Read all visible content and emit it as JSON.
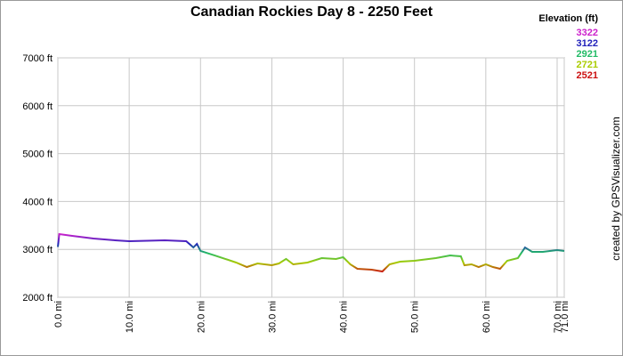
{
  "chart_data": {
    "type": "line",
    "title": "Canadian Rockies Day 8 - 2250 Feet",
    "credit": "created by GPSVisualizer.com",
    "legend": {
      "title": "Elevation (ft)",
      "items": [
        {
          "value": 3322,
          "color": "#cc22cc"
        },
        {
          "value": 3122,
          "color": "#2222bb"
        },
        {
          "value": 2921,
          "color": "#22bb66"
        },
        {
          "value": 2721,
          "color": "#aacc00"
        },
        {
          "value": 2521,
          "color": "#cc1111"
        }
      ]
    },
    "series": [
      {
        "name": "Elevation",
        "x": [
          0,
          0.2,
          2,
          5,
          8,
          10,
          15,
          18,
          19,
          19.5,
          20,
          22,
          25,
          26.5,
          28,
          30,
          31,
          32,
          33,
          35,
          37,
          39,
          40,
          41,
          42,
          44,
          45.5,
          46.5,
          48,
          50,
          53,
          55,
          56.5,
          57,
          58,
          59,
          60,
          61,
          62,
          63,
          64.5,
          65.5,
          66.5,
          68,
          70,
          71
        ],
        "values": [
          3050,
          3320,
          3283,
          3227,
          3190,
          3171,
          3190,
          3171,
          3040,
          3115,
          2967,
          2873,
          2725,
          2632,
          2706,
          2669,
          2706,
          2800,
          2688,
          2725,
          2818,
          2800,
          2836,
          2688,
          2595,
          2576,
          2539,
          2688,
          2743,
          2762,
          2818,
          2873,
          2855,
          2669,
          2688,
          2632,
          2688,
          2632,
          2595,
          2762,
          2818,
          3040,
          2948,
          2948,
          2985,
          2967
        ]
      }
    ],
    "xlim": [
      0,
      71.0
    ],
    "xticks": [
      {
        "value": 0,
        "label": "0.0 mi"
      },
      {
        "value": 10,
        "label": "10.0 mi"
      },
      {
        "value": 20,
        "label": "20.0 mi"
      },
      {
        "value": 30,
        "label": "30.0 mi"
      },
      {
        "value": 40,
        "label": "40.0 mi"
      },
      {
        "value": 50,
        "label": "50.0 mi"
      },
      {
        "value": 60,
        "label": "60.0 mi"
      },
      {
        "value": 70,
        "label": "70.0 mi"
      },
      {
        "value": 71.0,
        "label": "71.0 mi"
      }
    ],
    "ylim": [
      2000,
      7000
    ],
    "yticks": [
      {
        "value": 2000,
        "label": "2000 ft"
      },
      {
        "value": 3000,
        "label": "3000 ft"
      },
      {
        "value": 4000,
        "label": "4000 ft"
      },
      {
        "value": 5000,
        "label": "5000 ft"
      },
      {
        "value": 6000,
        "label": "6000 ft"
      },
      {
        "value": 7000,
        "label": "7000 ft"
      }
    ],
    "grid": true
  }
}
